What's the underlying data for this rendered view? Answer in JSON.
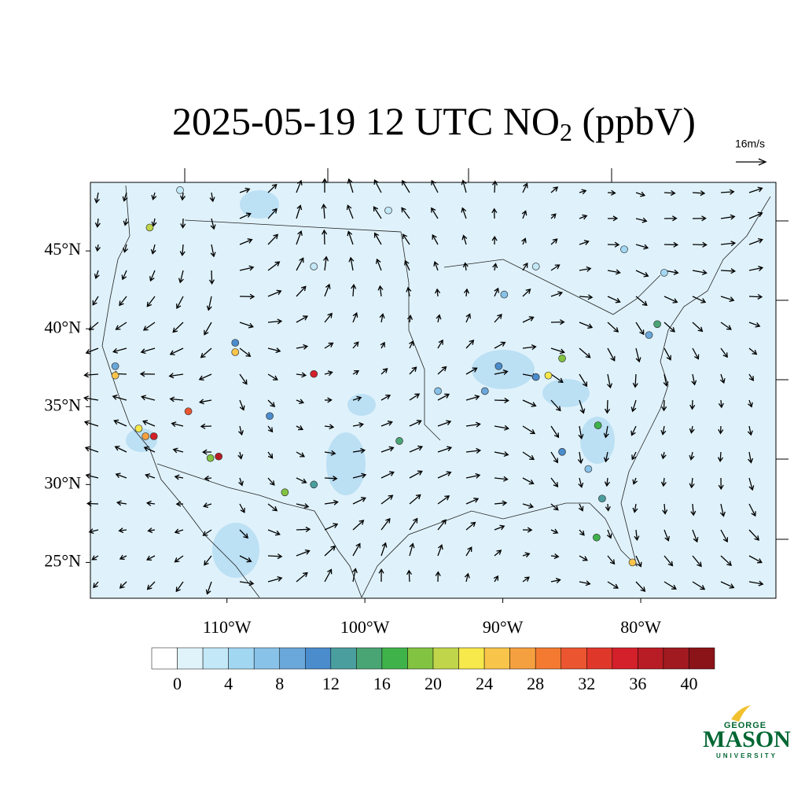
{
  "chart_data": {
    "type": "station-map",
    "title": [
      "2025-05-19 12 UTC NO",
      "2",
      " (ppbV)"
    ],
    "vector_reference": "16m/s",
    "xlim": [
      -119.9,
      -70.2
    ],
    "ylim": [
      22.7,
      49.4
    ],
    "xticks": [
      {
        "value": -110,
        "label": "110°W"
      },
      {
        "value": -100,
        "label": "100°W"
      },
      {
        "value": -90,
        "label": "90°W"
      },
      {
        "value": -80,
        "label": "80°W"
      }
    ],
    "yticks": [
      {
        "value": 45,
        "label": "45°N"
      },
      {
        "value": 40,
        "label": "40°N"
      },
      {
        "value": 35,
        "label": "35°N"
      },
      {
        "value": 30,
        "label": "30°N"
      },
      {
        "value": 25,
        "label": "25°N"
      }
    ],
    "stations": {
      "lon": [
        -115.6,
        -118.1,
        -115.9,
        -115.3,
        -112.8,
        -110.6,
        -111.2,
        -103.7,
        -109.4,
        -105.8,
        -103.7,
        -97.5,
        -85.7,
        -86.7,
        -83.1,
        -82.8,
        -83.2,
        -80.6,
        -78.8,
        -116.4,
        -118.1,
        -109.4,
        -90.3,
        -87.6,
        -85.7,
        -79.4,
        -91.3,
        -94.7,
        -106.9,
        -83.8,
        -113.4,
        -103.7,
        -87.6,
        -98.3,
        -81.2,
        -78.3,
        -89.9
      ],
      "lat": [
        46.5,
        37.6,
        33.1,
        33.1,
        34.7,
        31.8,
        31.7,
        37.1,
        38.5,
        29.5,
        30.0,
        32.8,
        38.1,
        37.0,
        33.8,
        29.1,
        26.6,
        25.0,
        40.3,
        33.6,
        37.0,
        39.1,
        37.6,
        36.9,
        32.1,
        39.6,
        36.0,
        36.0,
        34.4,
        31.0,
        48.9,
        44.0,
        44.0,
        47.6,
        45.1,
        43.6,
        42.2
      ],
      "values": [
        20,
        8,
        26,
        34,
        30,
        36,
        18,
        34,
        24,
        18,
        12,
        14,
        18,
        22,
        16,
        13,
        16,
        24,
        14,
        22,
        24,
        10,
        10,
        10,
        11,
        9,
        8,
        6,
        10,
        6,
        2,
        2,
        2,
        2,
        4,
        4,
        6
      ]
    },
    "colorbar": {
      "lim": [
        -2,
        42
      ],
      "ticks": [
        0,
        4,
        8,
        12,
        16,
        20,
        24,
        28,
        32,
        36,
        40
      ],
      "colors": [
        "#ffffff",
        "#e0f3fa",
        "#c3e8f7",
        "#a2d7f2",
        "#88c2e9",
        "#6aa7da",
        "#4a8ccc",
        "#4a9e9e",
        "#4aa574",
        "#3fb34a",
        "#82c341",
        "#c0d54a",
        "#f7e84c",
        "#f8c54a",
        "#f5a040",
        "#f37a30",
        "#eb5530",
        "#e0372b",
        "#d3202a",
        "#b81c24",
        "#a01a20",
        "#8b1419"
      ]
    },
    "logo": [
      "GEORGE",
      "MASON",
      "UNIVERSITY"
    ]
  }
}
